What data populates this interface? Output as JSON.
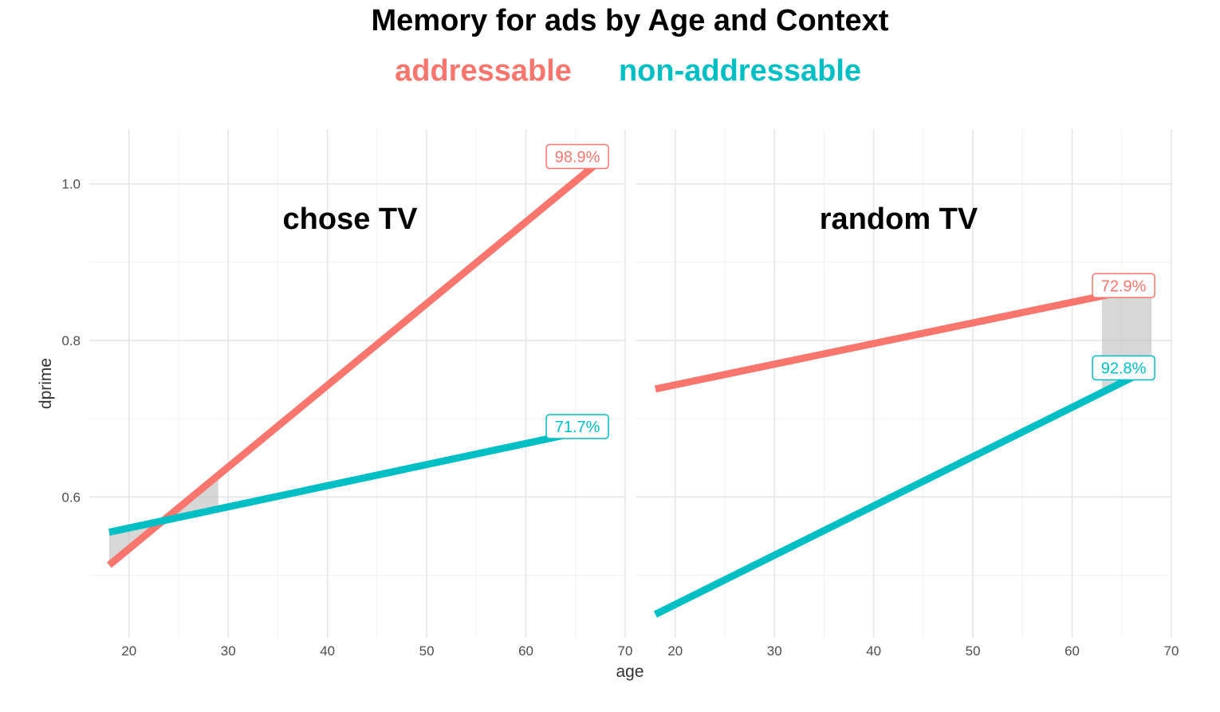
{
  "chart_data": {
    "type": "line",
    "title": "Memory for ads by Age and Context",
    "xlabel": "age",
    "ylabel": "dprime",
    "xlim": [
      16,
      70
    ],
    "ylim": [
      0.42,
      1.07
    ],
    "x_ticks": [
      20,
      30,
      40,
      50,
      60,
      70
    ],
    "y_ticks": [
      0.6,
      0.8,
      1.0
    ],
    "x_tick_labels": [
      "20",
      "30",
      "40",
      "50",
      "60",
      "70"
    ],
    "y_tick_labels": [
      "0.6",
      "0.8",
      "1.0"
    ],
    "grid": true,
    "legend_position": "top",
    "legend": [
      {
        "name": "addressable",
        "color": "#F8766D"
      },
      {
        "name": "non-addressable",
        "color": "#00BFC4"
      }
    ],
    "panels": [
      {
        "label": "chose TV",
        "series": [
          {
            "name": "addressable",
            "color": "#F8766D",
            "x": [
              18,
              68
            ],
            "y": [
              0.513,
              1.035
            ],
            "label": "98.9%"
          },
          {
            "name": "non-addressable",
            "color": "#00BFC4",
            "x": [
              18,
              68
            ],
            "y": [
              0.555,
              0.69
            ],
            "label": "71.7%"
          }
        ],
        "shaded_region": {
          "x": [
            18,
            29
          ],
          "color": "#bdbdbd"
        }
      },
      {
        "label": "random TV",
        "series": [
          {
            "name": "addressable",
            "color": "#F8766D",
            "x": [
              18,
              68
            ],
            "y": [
              0.738,
              0.87
            ],
            "label": "72.9%"
          },
          {
            "name": "non-addressable",
            "color": "#00BFC4",
            "x": [
              18,
              68
            ],
            "y": [
              0.45,
              0.765
            ],
            "label": "92.8%"
          }
        ],
        "shaded_region": {
          "x": [
            63,
            68
          ],
          "color": "#bdbdbd"
        }
      }
    ]
  }
}
